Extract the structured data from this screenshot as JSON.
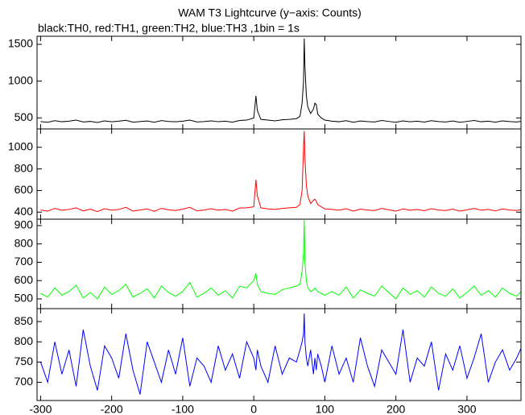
{
  "chart_data": [
    {
      "type": "line",
      "title": "WAM T3 Lightcurve (y−axis: Counts)",
      "subtitle": "black:TH0, red:TH1, green:TH2, blue:TH3 ,1bin = 1s",
      "color": "#000000",
      "x": [
        -300,
        -290,
        -280,
        -270,
        -260,
        -250,
        -240,
        -230,
        -220,
        -210,
        -200,
        -190,
        -180,
        -170,
        -160,
        -150,
        -140,
        -130,
        -120,
        -110,
        -100,
        -90,
        -80,
        -70,
        -60,
        -50,
        -40,
        -30,
        -20,
        -10,
        0,
        3,
        5,
        10,
        20,
        30,
        40,
        50,
        60,
        65,
        68,
        70,
        71,
        72,
        74,
        76,
        80,
        84,
        86,
        88,
        90,
        95,
        100,
        110,
        120,
        130,
        140,
        150,
        160,
        170,
        180,
        190,
        200,
        210,
        220,
        230,
        240,
        250,
        260,
        270,
        280,
        290,
        300,
        310,
        320,
        330,
        340,
        350,
        360,
        370,
        380
      ],
      "values": [
        450,
        440,
        462,
        448,
        455,
        470,
        445,
        452,
        438,
        460,
        447,
        455,
        468,
        442,
        450,
        458,
        440,
        463,
        452,
        447,
        455,
        470,
        444,
        450,
        460,
        448,
        455,
        442,
        465,
        470,
        500,
        800,
        600,
        480,
        470,
        460,
        475,
        480,
        490,
        520,
        700,
        1000,
        1580,
        1200,
        800,
        650,
        560,
        620,
        700,
        680,
        550,
        500,
        470,
        455,
        448,
        462,
        440,
        458,
        450,
        445,
        465,
        452,
        440,
        460,
        447,
        455,
        443,
        462,
        450,
        445,
        458,
        440,
        452,
        465,
        448,
        455,
        442,
        460,
        450,
        445,
        458
      ],
      "xlim": [
        -305,
        376
      ],
      "ylim": [
        350,
        1610
      ],
      "yticks": [
        500,
        1000,
        1500
      ]
    },
    {
      "type": "line",
      "color": "#ff0000",
      "x": [
        -300,
        -290,
        -280,
        -270,
        -260,
        -250,
        -240,
        -230,
        -220,
        -210,
        -200,
        -190,
        -180,
        -170,
        -160,
        -150,
        -140,
        -130,
        -120,
        -110,
        -100,
        -90,
        -80,
        -70,
        -60,
        -50,
        -40,
        -30,
        -20,
        -10,
        0,
        3,
        5,
        10,
        20,
        30,
        40,
        50,
        60,
        65,
        68,
        70,
        71,
        72,
        74,
        76,
        80,
        84,
        86,
        88,
        90,
        95,
        100,
        110,
        120,
        130,
        140,
        150,
        160,
        170,
        180,
        190,
        200,
        210,
        220,
        230,
        240,
        250,
        260,
        270,
        280,
        290,
        300,
        310,
        320,
        330,
        340,
        350,
        360,
        370,
        380
      ],
      "values": [
        420,
        410,
        435,
        418,
        425,
        440,
        412,
        428,
        405,
        432,
        418,
        425,
        445,
        410,
        420,
        430,
        408,
        435,
        422,
        415,
        428,
        445,
        412,
        420,
        432,
        418,
        425,
        410,
        438,
        440,
        450,
        700,
        550,
        440,
        430,
        425,
        435,
        440,
        445,
        470,
        600,
        1000,
        1150,
        900,
        650,
        550,
        480,
        510,
        520,
        500,
        470,
        450,
        430,
        425,
        418,
        432,
        410,
        428,
        420,
        415,
        435,
        422,
        410,
        430,
        418,
        425,
        413,
        432,
        420,
        415,
        428,
        410,
        422,
        435,
        418,
        425,
        412,
        430,
        420,
        415,
        428
      ],
      "xlim": [
        -305,
        376
      ],
      "ylim": [
        335,
        1170
      ],
      "yticks": [
        400,
        600,
        800,
        1000
      ]
    },
    {
      "type": "line",
      "color": "#00ff00",
      "x": [
        -300,
        -290,
        -280,
        -270,
        -260,
        -250,
        -240,
        -230,
        -220,
        -210,
        -200,
        -190,
        -180,
        -170,
        -160,
        -150,
        -140,
        -130,
        -120,
        -110,
        -100,
        -90,
        -80,
        -70,
        -60,
        -50,
        -40,
        -30,
        -20,
        -10,
        0,
        3,
        5,
        10,
        20,
        30,
        40,
        50,
        60,
        65,
        68,
        70,
        71,
        72,
        74,
        76,
        80,
        84,
        86,
        88,
        90,
        95,
        100,
        110,
        120,
        130,
        140,
        150,
        160,
        170,
        180,
        190,
        200,
        210,
        220,
        230,
        240,
        250,
        260,
        270,
        280,
        290,
        300,
        310,
        320,
        330,
        340,
        350,
        360,
        370,
        380
      ],
      "values": [
        530,
        510,
        560,
        520,
        540,
        575,
        505,
        535,
        500,
        565,
        525,
        545,
        580,
        510,
        530,
        555,
        505,
        570,
        535,
        515,
        540,
        590,
        510,
        530,
        560,
        520,
        545,
        505,
        570,
        560,
        600,
        640,
        580,
        540,
        530,
        525,
        550,
        560,
        570,
        580,
        650,
        750,
        930,
        700,
        600,
        560,
        540,
        550,
        560,
        550,
        540,
        530,
        520,
        540,
        520,
        565,
        505,
        550,
        530,
        515,
        570,
        535,
        500,
        560,
        525,
        545,
        510,
        565,
        530,
        515,
        555,
        505,
        535,
        570,
        520,
        545,
        510,
        560,
        530,
        515,
        555
      ],
      "xlim": [
        -305,
        376
      ],
      "ylim": [
        447,
        935
      ],
      "yticks": [
        500,
        600,
        700,
        800,
        900
      ]
    },
    {
      "type": "line",
      "color": "#0000ff",
      "x": [
        -300,
        -290,
        -280,
        -270,
        -260,
        -250,
        -240,
        -230,
        -220,
        -210,
        -200,
        -190,
        -180,
        -170,
        -160,
        -150,
        -140,
        -130,
        -120,
        -110,
        -100,
        -90,
        -80,
        -70,
        -60,
        -50,
        -40,
        -30,
        -20,
        -10,
        0,
        3,
        5,
        10,
        20,
        30,
        40,
        50,
        60,
        65,
        68,
        70,
        71,
        72,
        74,
        76,
        80,
        84,
        86,
        88,
        90,
        95,
        100,
        110,
        120,
        130,
        140,
        150,
        160,
        170,
        180,
        190,
        200,
        210,
        220,
        230,
        240,
        250,
        260,
        270,
        280,
        290,
        300,
        310,
        320,
        330,
        340,
        350,
        360,
        370,
        380
      ],
      "values": [
        750,
        700,
        800,
        720,
        780,
        690,
        830,
        740,
        680,
        790,
        760,
        710,
        820,
        730,
        670,
        800,
        750,
        700,
        780,
        720,
        810,
        690,
        760,
        740,
        700,
        790,
        730,
        770,
        710,
        800,
        760,
        730,
        780,
        740,
        700,
        790,
        720,
        760,
        750,
        780,
        800,
        820,
        870,
        800,
        760,
        740,
        780,
        720,
        760,
        730,
        770,
        740,
        700,
        790,
        720,
        760,
        700,
        810,
        740,
        690,
        780,
        750,
        720,
        830,
        700,
        760,
        740,
        800,
        680,
        770,
        730,
        790,
        710,
        760,
        820,
        700,
        750,
        780,
        730,
        760,
        800
      ],
      "xlim": [
        -305,
        376
      ],
      "ylim": [
        655,
        882
      ],
      "yticks": [
        700,
        750,
        800,
        850
      ],
      "xticks": [
        -300,
        -200,
        -100,
        0,
        100,
        200,
        300
      ]
    }
  ]
}
